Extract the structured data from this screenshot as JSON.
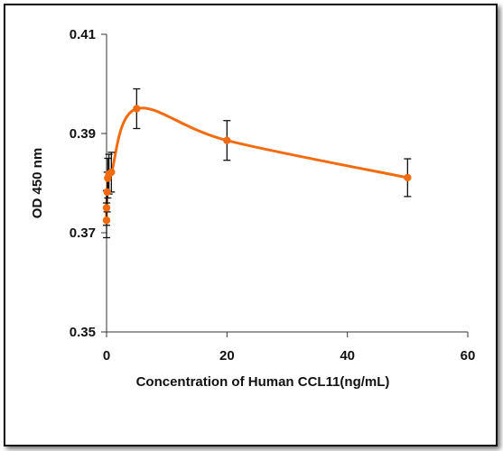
{
  "chart_data": {
    "type": "line",
    "title": "",
    "xlabel": "Concentration of Human CCL11(ng/mL)",
    "ylabel": "OD 450 nm",
    "xlim": [
      0,
      60
    ],
    "ylim": [
      0.35,
      0.41
    ],
    "x_ticks": [
      "0",
      "20",
      "40",
      "60"
    ],
    "y_ticks": [
      "0.35",
      "0.37",
      "0.39",
      "0.41"
    ],
    "grid": false,
    "legend": "none",
    "series": [
      {
        "color": "#f26b0f",
        "smooth": true,
        "points": [
          {
            "x": 0.0,
            "y": 0.3725,
            "err": 0.0035
          },
          {
            "x": 0.0,
            "y": 0.375,
            "err": 0.0035
          },
          {
            "x": 0.1,
            "y": 0.3782,
            "err": 0.004
          },
          {
            "x": 0.2,
            "y": 0.381,
            "err": 0.004
          },
          {
            "x": 0.4,
            "y": 0.3818,
            "err": 0.004
          },
          {
            "x": 0.8,
            "y": 0.3822,
            "err": 0.004
          },
          {
            "x": 5.0,
            "y": 0.395,
            "err": 0.004
          },
          {
            "x": 20.0,
            "y": 0.3886,
            "err": 0.004
          },
          {
            "x": 50.0,
            "y": 0.3811,
            "err": 0.0038
          }
        ]
      }
    ]
  }
}
